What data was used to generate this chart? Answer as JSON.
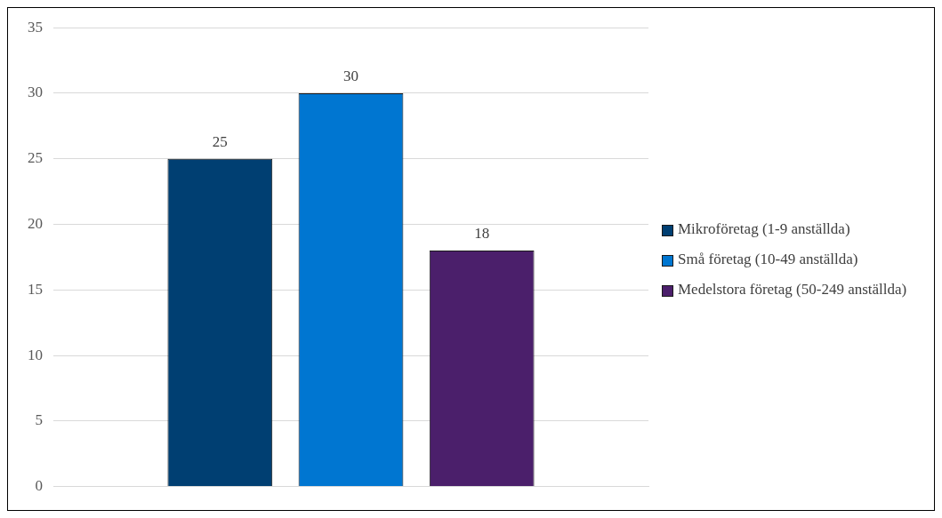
{
  "chart_data": {
    "type": "bar",
    "categories": [
      null
    ],
    "series": [
      {
        "name": "Mikroföretag (1-9 anställda)",
        "color": "#003f72",
        "values": [
          25
        ]
      },
      {
        "name": "Små företag (10-49 anställda)",
        "color": "#0076d1",
        "values": [
          30
        ]
      },
      {
        "name": "Medelstora företag (50-249 anställda)",
        "color": "#4b1f6b",
        "values": [
          18
        ]
      }
    ],
    "ylim": [
      0,
      35
    ],
    "yticks": [
      0,
      5,
      10,
      15,
      20,
      25,
      30,
      35
    ],
    "grid": "y",
    "legend": "right",
    "data_labels": true
  }
}
